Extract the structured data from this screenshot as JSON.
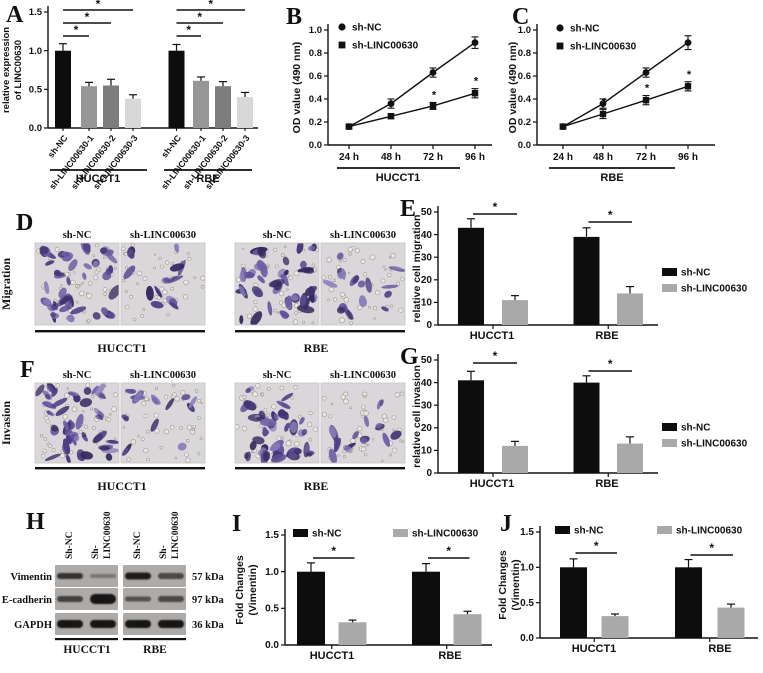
{
  "panels": {
    "A": {
      "letter": "A"
    },
    "B": {
      "letter": "B"
    },
    "C": {
      "letter": "C"
    },
    "D": {
      "letter": "D"
    },
    "E": {
      "letter": "E"
    },
    "F": {
      "letter": "F"
    },
    "G": {
      "letter": "G"
    },
    "H": {
      "letter": "H"
    },
    "I": {
      "letter": "I"
    },
    "J": {
      "letter": "J"
    }
  },
  "colors": {
    "black_bar": "#0d0d0d",
    "gray_bar": "#a9a9a9",
    "panelA_bars": [
      "#0d0d0d",
      "#969696",
      "#7d7d7d",
      "#d8d8d8"
    ],
    "stain_palette": [
      "#4d3f85",
      "#5d4f96",
      "#3f3370",
      "#6e60a5",
      "#8a7fba",
      "#342a5e"
    ],
    "micro_background": "#dad7db"
  },
  "chart_data": [
    {
      "id": "A",
      "type": "bar",
      "ylabel_lines": [
        "relative expression",
        "of LINC00630"
      ],
      "ylim": [
        0,
        1.5
      ],
      "yticks": [
        "0.0",
        "0.5",
        "1.0",
        "1.5"
      ],
      "categories": [
        "sh-NC",
        "sh-LINC00630-1",
        "sh-LINC00630-2",
        "sh-LINC00630-3"
      ],
      "bar_colors": [
        "#0d0d0d",
        "#969696",
        "#7d7d7d",
        "#d8d8d8"
      ],
      "groups": [
        {
          "label": "HUCCT1",
          "values": [
            1.0,
            0.54,
            0.55,
            0.38
          ],
          "errors": [
            0.09,
            0.05,
            0.08,
            0.05
          ]
        },
        {
          "label": "RBE",
          "values": [
            1.0,
            0.61,
            0.54,
            0.4
          ],
          "errors": [
            0.08,
            0.05,
            0.06,
            0.06
          ]
        }
      ],
      "sig_marker": "*"
    },
    {
      "id": "B",
      "type": "line",
      "ylabel": "OD value (490 nm)",
      "ylim": [
        0,
        1.0
      ],
      "yticks": [
        "0.0",
        "0.2",
        "0.4",
        "0.6",
        "0.8",
        "1.0"
      ],
      "x_categories": [
        "24 h",
        "48 h",
        "72 h",
        "96 h"
      ],
      "group_label": "HUCCT1",
      "series": [
        {
          "name": "sh-NC",
          "marker": "circle",
          "values": [
            0.16,
            0.36,
            0.63,
            0.89
          ],
          "errors": [
            0.02,
            0.04,
            0.04,
            0.05
          ],
          "sig": [
            false,
            false,
            false,
            false
          ]
        },
        {
          "name": "sh-LINC00630",
          "marker": "square",
          "values": [
            0.16,
            0.25,
            0.34,
            0.45
          ],
          "errors": [
            0.02,
            0.02,
            0.03,
            0.04
          ],
          "sig": [
            false,
            true,
            true,
            true
          ]
        }
      ],
      "sig_marker": "*"
    },
    {
      "id": "C",
      "type": "line",
      "ylabel": "OD value (490 nm)",
      "ylim": [
        0,
        1.0
      ],
      "yticks": [
        "0.0",
        "0.2",
        "0.4",
        "0.6",
        "0.8",
        "1.0"
      ],
      "x_categories": [
        "24 h",
        "48 h",
        "72 h",
        "96 h"
      ],
      "group_label": "RBE",
      "series": [
        {
          "name": "sh-NC",
          "marker": "circle",
          "values": [
            0.16,
            0.36,
            0.63,
            0.89
          ],
          "errors": [
            0.02,
            0.04,
            0.04,
            0.06
          ],
          "sig": [
            false,
            false,
            false,
            false
          ]
        },
        {
          "name": "sh-LINC00630",
          "marker": "square",
          "values": [
            0.16,
            0.27,
            0.39,
            0.51
          ],
          "errors": [
            0.02,
            0.04,
            0.04,
            0.04
          ],
          "sig": [
            false,
            true,
            true,
            true
          ]
        }
      ],
      "sig_marker": "*"
    },
    {
      "id": "E",
      "type": "bar",
      "ylabel_lines": [
        "relative cell migration"
      ],
      "ylim": [
        0,
        50
      ],
      "yticks": [
        "0",
        "10",
        "20",
        "30",
        "40",
        "50"
      ],
      "bar_colors": [
        "#0d0d0d",
        "#a9a9a9"
      ],
      "legend": [
        "sh-NC",
        "sh-LINC00630"
      ],
      "groups": [
        {
          "label": "HUCCT1",
          "values": [
            43,
            11
          ],
          "errors": [
            4,
            2
          ]
        },
        {
          "label": "RBE",
          "values": [
            39,
            14
          ],
          "errors": [
            4,
            3
          ]
        }
      ],
      "sig_marker": "*"
    },
    {
      "id": "G",
      "type": "bar",
      "ylabel_lines": [
        "relative cell invasion"
      ],
      "ylim": [
        0,
        50
      ],
      "yticks": [
        "0",
        "10",
        "20",
        "30",
        "40",
        "50"
      ],
      "bar_colors": [
        "#0d0d0d",
        "#a9a9a9"
      ],
      "legend": [
        "sh-NC",
        "sh-LINC00630"
      ],
      "groups": [
        {
          "label": "HUCCT1",
          "values": [
            41,
            12
          ],
          "errors": [
            4,
            2
          ]
        },
        {
          "label": "RBE",
          "values": [
            40,
            13
          ],
          "errors": [
            3,
            3
          ]
        }
      ],
      "sig_marker": "*"
    },
    {
      "id": "I",
      "type": "bar",
      "ylabel_lines": [
        "Fold Changes",
        "(Vimentin)"
      ],
      "ylim": [
        0,
        1.5
      ],
      "yticks": [
        "0.0",
        "0.5",
        "1.0",
        "1.5"
      ],
      "bar_colors": [
        "#0d0d0d",
        "#a9a9a9"
      ],
      "legend": [
        "sh-NC",
        "sh-LINC00630"
      ],
      "groups": [
        {
          "label": "HUCCT1",
          "values": [
            1.0,
            0.31
          ],
          "errors": [
            0.12,
            0.03
          ]
        },
        {
          "label": "RBE",
          "values": [
            1.0,
            0.42
          ],
          "errors": [
            0.11,
            0.04
          ]
        }
      ],
      "sig_marker": "*"
    },
    {
      "id": "J",
      "type": "bar",
      "ylabel_lines": [
        "Fold Changes",
        "(Vimentin)"
      ],
      "ylim": [
        0,
        1.5
      ],
      "yticks": [
        "0.0",
        "0.5",
        "1.0",
        "1.5"
      ],
      "bar_colors": [
        "#0d0d0d",
        "#a9a9a9"
      ],
      "legend": [
        "sh-NC",
        "sh-LINC00630"
      ],
      "groups": [
        {
          "label": "HUCCT1",
          "values": [
            1.0,
            0.31
          ],
          "errors": [
            0.12,
            0.03
          ]
        },
        {
          "label": "RBE",
          "values": [
            1.0,
            0.43
          ],
          "errors": [
            0.11,
            0.05
          ]
        }
      ],
      "sig_marker": "*"
    }
  ],
  "microscopy": {
    "rows": [
      {
        "id": "D",
        "row_label": "Migration",
        "column_labels": [
          "sh-NC",
          "sh-LINC00630",
          "sh-NC",
          "sh-LINC00630"
        ],
        "group_labels": [
          "HUCCT1",
          "RBE"
        ],
        "cell_density": [
          40,
          13,
          38,
          14
        ]
      },
      {
        "id": "F",
        "row_label": "Invasion",
        "column_labels": [
          "sh-NC",
          "sh-LINC00630",
          "sh-NC",
          "sh-LINC00630"
        ],
        "group_labels": [
          "HUCCT1",
          "RBE"
        ],
        "cell_density": [
          38,
          12,
          36,
          13
        ]
      }
    ]
  },
  "western_blot": {
    "lane_labels": [
      "Sh-NC",
      "Sh-LINC00630",
      "Sh-NC",
      "Sh-LINC00630"
    ],
    "group_labels": [
      "HUCCT1",
      "RBE"
    ],
    "rows": [
      {
        "protein": "Vimentin",
        "weight": "57 kDa",
        "band_intensity": [
          0.8,
          0.35,
          0.95,
          0.65
        ],
        "band_thickness": [
          6,
          4,
          7,
          6
        ]
      },
      {
        "protein": "E-cadherin",
        "weight": "97 kDa",
        "band_intensity": [
          0.7,
          1.0,
          0.6,
          0.65
        ],
        "band_thickness": [
          6,
          10,
          5,
          6
        ]
      },
      {
        "protein": "GAPDH",
        "weight": "36 kDa",
        "band_intensity": [
          1.0,
          1.0,
          1.0,
          1.0
        ],
        "band_thickness": [
          8,
          8,
          8,
          8
        ]
      }
    ]
  }
}
